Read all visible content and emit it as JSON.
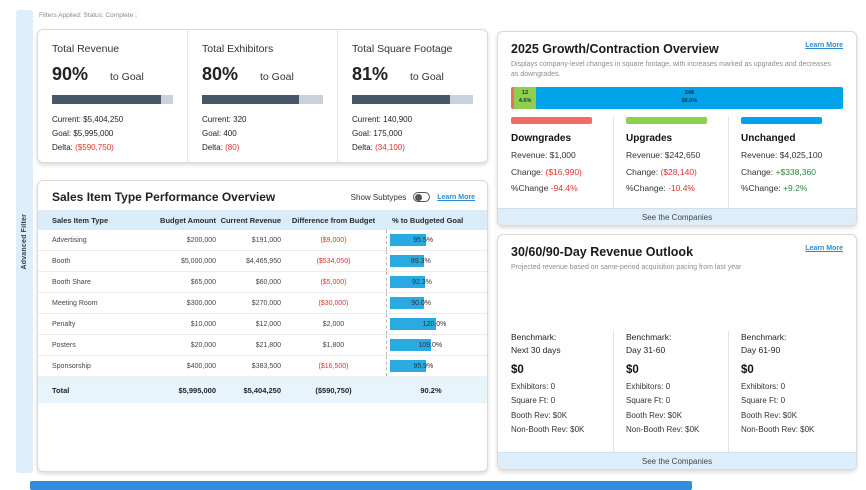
{
  "header": {
    "filters_applied": "Filters Applied: Status: Complete ;"
  },
  "sidebar": {
    "label": "Advanced Filter"
  },
  "colors": {
    "accent_blue": "#29abe2",
    "progress_dark": "#46586a",
    "negative_red": "#e0312e",
    "positive_green": "#2e8540",
    "link_blue": "#2a8cd4",
    "scrollbar_blue": "#2b90d9",
    "downgrade_red": "#f4696b",
    "upgrade_green": "#8ed04d",
    "unchanged_blue": "#00a2e8"
  },
  "kpis": [
    {
      "title": "Total Revenue",
      "pct_label": "90%",
      "pct_value": 90,
      "to_goal": "to Goal",
      "current": "Current: $5,404,250",
      "goal": "Goal: $5,995,000",
      "delta_label": "Delta: ",
      "delta": "($590,750)"
    },
    {
      "title": "Total Exhibitors",
      "pct_label": "80%",
      "pct_value": 80,
      "to_goal": "to Goal",
      "current": "Current: 320",
      "goal": "Goal: 400",
      "delta_label": "Delta: ",
      "delta": "(80)"
    },
    {
      "title": "Total Square Footage",
      "pct_label": "81%",
      "pct_value": 81,
      "to_goal": "to Goal",
      "current": "Current: 140,900",
      "goal": "Goal: 175,000",
      "delta_label": "Delta: ",
      "delta": "(34,100)"
    }
  ],
  "table": {
    "title": "Sales Item Type Performance Overview",
    "show_subtypes_label": "Show Subtypes",
    "learn_more": "Learn More",
    "columns": [
      "Sales Item Type",
      "Budget Amount",
      "Current Revenue",
      "Difference from Budget",
      "% to Budgeted Goal"
    ],
    "rows": [
      {
        "type": "Advertising",
        "budget": "$200,000",
        "revenue": "$191,000",
        "diff": "($9,000)",
        "diff_class": "neg",
        "pct": 95.5,
        "pct_label": "95.5%"
      },
      {
        "type": "Booth",
        "budget": "$5,000,000",
        "revenue": "$4,465,950",
        "diff": "($534,050)",
        "diff_class": "neg",
        "pct": 89.3,
        "pct_label": "89.3%"
      },
      {
        "type": "Booth Share",
        "budget": "$65,000",
        "revenue": "$60,000",
        "diff": "($5,000)",
        "diff_class": "neg",
        "pct": 92.3,
        "pct_label": "92.3%"
      },
      {
        "type": "Meeting Room",
        "budget": "$300,000",
        "revenue": "$270,000",
        "diff": "($30,000)",
        "diff_class": "neg",
        "pct": 90.0,
        "pct_label": "90.0%"
      },
      {
        "type": "Penalty",
        "budget": "$10,000",
        "revenue": "$12,000",
        "diff": "$2,000",
        "diff_class": "",
        "pct": 120.0,
        "pct_label": "120.0%"
      },
      {
        "type": "Posters",
        "budget": "$20,000",
        "revenue": "$21,800",
        "diff": "$1,800",
        "diff_class": "",
        "pct": 109.0,
        "pct_label": "109.0%"
      },
      {
        "type": "Sponsorship",
        "budget": "$400,000",
        "revenue": "$383,500",
        "diff": "($16,500)",
        "diff_class": "neg",
        "pct": 95.9,
        "pct_label": "95.9%"
      }
    ],
    "total": {
      "type": "Total",
      "budget": "$5,995,000",
      "revenue": "$5,404,250",
      "diff": "($590,750)",
      "pct_label": "90.2%"
    }
  },
  "growth": {
    "title": "2025 Growth/Contraction Overview",
    "learn_more": "Learn More",
    "description": "Displays company-level changes in square footage, with increases marked as upgrades and decreases as downgrades.",
    "chart_data": {
      "type": "bar",
      "segments": [
        {
          "name": "downgrades",
          "count": "",
          "pct_label": "",
          "width_pct": 1.0,
          "color": "#f4696b"
        },
        {
          "name": "upgrades",
          "count": "12",
          "pct_label": "4.6%",
          "width_pct": 6.5,
          "color": "#8ed04d"
        },
        {
          "name": "unchanged",
          "count": "248",
          "pct_label": "95.0%",
          "width_pct": 92.5,
          "color": "#00a2e8"
        }
      ]
    },
    "columns": [
      {
        "heading": "Downgrades",
        "color": "#f4696b",
        "revenue": "Revenue: $1,000",
        "change_label": "Change: ",
        "change_value": "($16,990)",
        "change_class": "red",
        "pchange_label": "%Change ",
        "pchange_value": "-94.4%",
        "pchange_class": "red"
      },
      {
        "heading": "Upgrades",
        "color": "#8ed04d",
        "revenue": "Revenue: $242,650",
        "change_label": "Change: ",
        "change_value": "($28,140)",
        "change_class": "red",
        "pchange_label": "%Change: ",
        "pchange_value": "-10.4%",
        "pchange_class": "red"
      },
      {
        "heading": "Unchanged",
        "color": "#00a2e8",
        "revenue": "Revenue: $4,025,100",
        "change_label": "Change: ",
        "change_value": "+$338,360",
        "change_class": "green",
        "pchange_label": "%Change: ",
        "pchange_value": "+9.2%",
        "pchange_class": "green"
      }
    ],
    "see_companies": "See the Companies"
  },
  "outlook": {
    "title": "30/60/90-Day Revenue Outlook",
    "learn_more": "Learn More",
    "description": "Projected revenue based on same-period acquisition pacing from last year",
    "columns": [
      {
        "benchmark": "Benchmark:",
        "period": "Next 30 days",
        "amount": "$0",
        "exhibitors": "Exhibitors: 0",
        "square_ft": "Square Ft: 0",
        "booth_rev": "Booth Rev: $0K",
        "non_booth_rev": "Non-Booth Rev: $0K"
      },
      {
        "benchmark": "Benchmark:",
        "period": "Day 31-60",
        "amount": "$0",
        "exhibitors": "Exhibitors: 0",
        "square_ft": "Square Ft: 0",
        "booth_rev": "Booth Rev: $0K",
        "non_booth_rev": "Non-Booth Rev: $0K"
      },
      {
        "benchmark": "Benchmark:",
        "period": "Day 61-90",
        "amount": "$0",
        "exhibitors": "Exhibitors: 0",
        "square_ft": "Square Ft: 0",
        "booth_rev": "Booth Rev: $0K",
        "non_booth_rev": "Non-Booth Rev: $0K"
      }
    ],
    "see_companies": "See the Companies"
  }
}
